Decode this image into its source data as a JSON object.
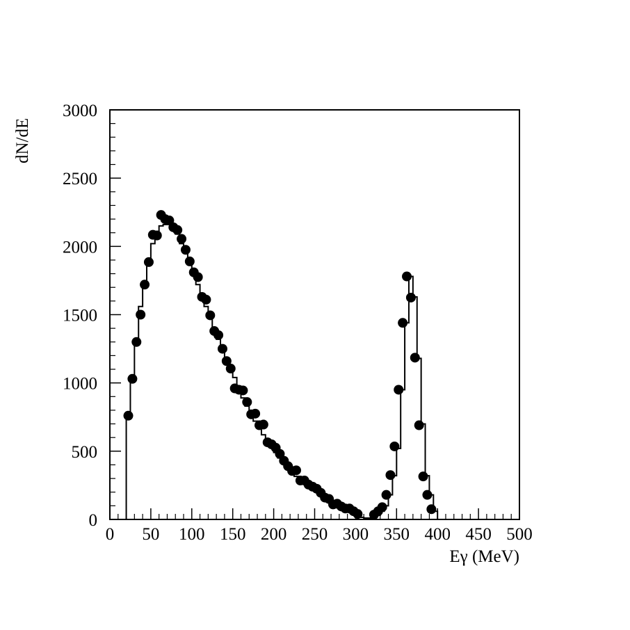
{
  "chart_data": {
    "type": "scatter",
    "xlabel": "Eγ (MeV)",
    "ylabel": "dN/dE",
    "xlim": [
      0,
      500
    ],
    "ylim": [
      0,
      3000
    ],
    "x_ticks": [
      "0",
      "50",
      "100",
      "150",
      "200",
      "250",
      "300",
      "350",
      "400",
      "450",
      "500"
    ],
    "y_ticks": [
      "0",
      "500",
      "1000",
      "1500",
      "2000",
      "2500",
      "3000"
    ],
    "grid": false,
    "legend": "none",
    "series": [
      {
        "style": "points",
        "x": [
          22.5,
          27.5,
          32.5,
          37.5,
          42.5,
          47.5,
          52.5,
          57.5,
          62.5,
          67.5,
          72.5,
          77.5,
          82.5,
          87.5,
          92.5,
          97.5,
          102.5,
          107.5,
          112.5,
          117.5,
          122.5,
          127.5,
          132.5,
          137.5,
          142.5,
          147.5,
          152.5,
          157.5,
          162.5,
          167.5,
          172.5,
          177.5,
          182.5,
          187.5,
          192.5,
          197.5,
          202.5,
          207.5,
          212.5,
          217.5,
          222.5,
          227.5,
          232.5,
          237.5,
          242.5,
          247.5,
          252.5,
          257.5,
          262.5,
          267.5,
          272.5,
          277.5,
          282.5,
          287.5,
          292.5,
          297.5,
          302.5,
          322.5,
          327.5,
          332.5,
          337.5,
          342.5,
          347.5,
          352.5,
          357.5,
          362.5,
          367.5,
          372.5,
          377.5,
          382.5,
          387.5,
          392.5
        ],
        "y": [
          760,
          1030,
          1300,
          1500,
          1720,
          1885,
          2085,
          2080,
          2230,
          2200,
          2190,
          2140,
          2120,
          2055,
          1975,
          1890,
          1810,
          1775,
          1630,
          1610,
          1495,
          1380,
          1350,
          1250,
          1160,
          1105,
          960,
          950,
          945,
          860,
          770,
          775,
          690,
          695,
          565,
          550,
          525,
          480,
          430,
          390,
          355,
          360,
          285,
          285,
          255,
          240,
          225,
          195,
          160,
          150,
          110,
          115,
          95,
          80,
          80,
          60,
          40,
          35,
          60,
          90,
          180,
          325,
          535,
          950,
          1440,
          1780,
          1625,
          1185,
          690,
          315,
          180,
          75
        ]
      },
      {
        "style": "step",
        "edges": [
          20,
          25,
          30,
          35,
          40,
          45,
          50,
          55,
          60,
          65,
          70,
          75,
          80,
          85,
          90,
          95,
          100,
          105,
          110,
          115,
          120,
          125,
          130,
          135,
          140,
          145,
          150,
          155,
          160,
          165,
          170,
          175,
          180,
          185,
          190,
          195,
          200,
          205,
          210,
          215,
          220,
          225,
          230,
          235,
          240,
          245,
          250,
          255,
          260,
          265,
          270,
          275,
          280,
          285,
          290,
          295,
          300,
          305,
          310,
          315,
          320,
          325,
          330,
          335,
          340,
          345,
          350,
          355,
          360,
          365,
          370,
          375,
          380,
          385,
          390,
          395,
          400
        ],
        "values": [
          760,
          1030,
          1320,
          1560,
          1730,
          1890,
          2020,
          2110,
          2150,
          2160,
          2170,
          2140,
          2090,
          2020,
          1950,
          1870,
          1790,
          1720,
          1640,
          1560,
          1480,
          1400,
          1320,
          1250,
          1170,
          1100,
          1040,
          960,
          890,
          830,
          770,
          720,
          670,
          620,
          570,
          530,
          490,
          450,
          410,
          380,
          345,
          315,
          290,
          265,
          240,
          220,
          200,
          180,
          160,
          140,
          120,
          105,
          90,
          75,
          60,
          45,
          30,
          15,
          10,
          10,
          10,
          30,
          60,
          100,
          180,
          320,
          520,
          950,
          1440,
          1780,
          1630,
          1180,
          700,
          320,
          180,
          60
        ]
      }
    ]
  }
}
